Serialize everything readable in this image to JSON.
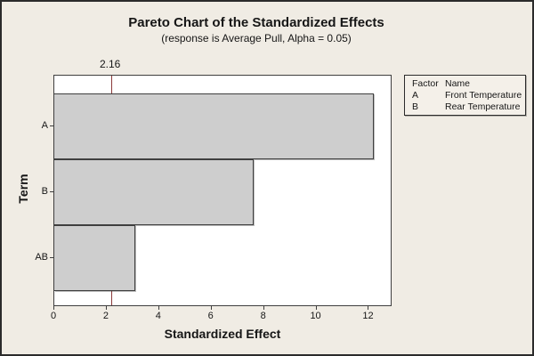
{
  "figure": {
    "title": "Pareto Chart of the Standardized Effects",
    "subtitle": "(response is Average Pull, Alpha = 0.05)"
  },
  "chart_data": {
    "type": "bar",
    "orientation": "horizontal",
    "title": "Pareto Chart of the Standardized Effects",
    "subtitle": "(response is Average Pull, Alpha = 0.05)",
    "categories": [
      "A",
      "B",
      "AB"
    ],
    "values": [
      12.2,
      7.6,
      3.1
    ],
    "xlabel": "Standardized Effect",
    "ylabel": "Term",
    "xticks": [
      0,
      2,
      4,
      6,
      8,
      10,
      12
    ],
    "xlim": [
      0,
      12.9
    ],
    "grid": false,
    "legend_position": "top-right",
    "reference_line": {
      "value": 2.16,
      "label": "2.16"
    }
  },
  "legend": {
    "header": {
      "factor": "Factor",
      "name": "Name"
    },
    "rows": [
      {
        "factor": "A",
        "name": "Front Temperature"
      },
      {
        "factor": "B",
        "name": "Rear Temperature"
      }
    ]
  },
  "colors": {
    "background": "#f0ece4",
    "plot_background": "#ffffff",
    "bar_fill": "#cecece",
    "bar_border": "#3f3f3f",
    "reference_line": "#8b3a3a",
    "outer_border": "#2b2b2b",
    "text": "#161616"
  }
}
